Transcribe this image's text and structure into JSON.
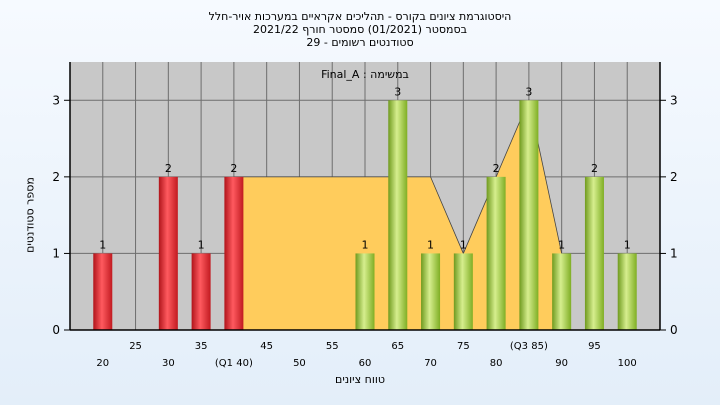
{
  "chart_data": {
    "type": "bar",
    "title_lines": [
      "היסטוגרמת ציונים בקורס - תהליכים אקראיים במערכות אויר-חלל",
      "בסמסטר  (01/2021)  סמסטר חורף 2021/22",
      "סטודנטים רשומים - 29"
    ],
    "annotation": "Final_A : במשימה",
    "xlabel": "טווח ציונים",
    "ylabel": "מספר סטודנטים",
    "ylim": [
      0,
      3.5
    ],
    "yticks": [
      0,
      1,
      2,
      3
    ],
    "x": [
      20,
      25,
      30,
      35,
      40,
      45,
      50,
      55,
      60,
      65,
      70,
      75,
      80,
      85,
      90,
      95,
      100
    ],
    "x_tick_labels": [
      "20",
      "25",
      "30",
      "35",
      "(Q1 40)",
      "45",
      "50",
      "55",
      "60",
      "65",
      "70",
      "75",
      "80",
      "(Q3 85)",
      "90",
      "95",
      "100"
    ],
    "values": [
      1,
      0,
      2,
      1,
      2,
      0,
      0,
      0,
      1,
      3,
      1,
      1,
      2,
      3,
      1,
      2,
      1
    ],
    "bar_labels": [
      "1",
      "",
      "2",
      "1",
      "2",
      "",
      "",
      "",
      "1",
      "3",
      "1",
      "1",
      "2",
      "3",
      "1",
      "2",
      "1"
    ],
    "bar_groups": [
      "red",
      "red",
      "red",
      "red",
      "red",
      "green",
      "green",
      "green",
      "green",
      "green",
      "green",
      "green",
      "green",
      "green",
      "green",
      "green",
      "green"
    ],
    "iqr_band": {
      "x": [
        40,
        70,
        75,
        85,
        90
      ],
      "y": [
        2,
        2,
        1,
        3,
        1
      ]
    },
    "colors": {
      "red": "#e8262e",
      "green": "#95c233",
      "band": "#ffcc5c",
      "plot_bg": "#c8c8c8"
    },
    "grid": true
  }
}
